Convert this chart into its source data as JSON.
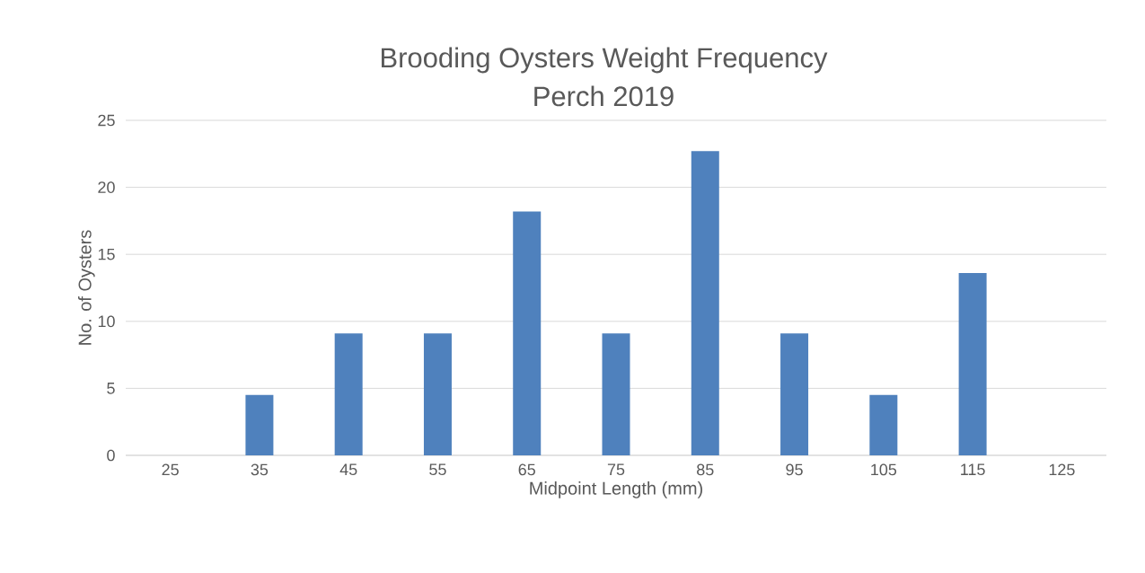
{
  "chart_data": {
    "type": "bar",
    "title": "Brooding Oysters Weight Frequency",
    "subtitle": "Perch 2019",
    "xlabel": "Midpoint Length (mm)",
    "ylabel": "No. of Oysters",
    "categories": [
      "25",
      "35",
      "45",
      "55",
      "65",
      "75",
      "85",
      "95",
      "105",
      "115",
      "125"
    ],
    "values": [
      0,
      4.5,
      9.1,
      9.1,
      18.2,
      9.1,
      22.7,
      9.1,
      4.5,
      13.6,
      0
    ],
    "color": "#4f81bd",
    "ylim": [
      0,
      25
    ],
    "yticks": [
      0,
      5,
      10,
      15,
      20,
      25
    ],
    "grid": "y"
  }
}
